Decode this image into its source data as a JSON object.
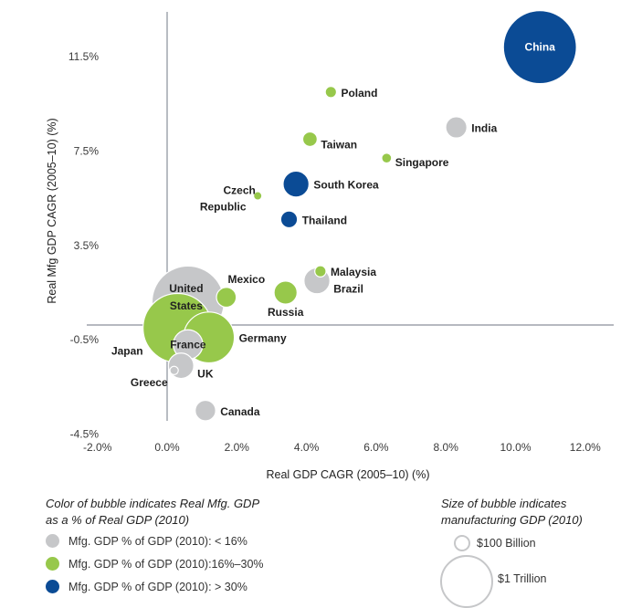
{
  "chart_data": {
    "type": "scatter",
    "subtype": "bubble",
    "xlabel": "Real GDP CAGR (2005–10) (%)",
    "ylabel": "Real Mfg GDP CAGR (2005–10) (%)",
    "xlim": [
      -2.0,
      12.0
    ],
    "ylim": [
      -4.5,
      11.5
    ],
    "x_ticks": [
      "-2.0%",
      "0.0%",
      "2.0%",
      "4.0%",
      "6.0%",
      "8.0%",
      "10.0%",
      "12.0%"
    ],
    "x_tick_values": [
      -2,
      0,
      2,
      4,
      6,
      8,
      10,
      12
    ],
    "y_ticks": [
      "11.5%",
      "7.5%",
      "3.5%",
      "-0.5%",
      "-4.5%"
    ],
    "y_tick_values": [
      11.5,
      7.5,
      3.5,
      -0.5,
      -4.5
    ],
    "grid": false,
    "colors": {
      "low": "#c6c7c9",
      "mid": "#97c84b",
      "high": "#0b4b95"
    },
    "points": [
      {
        "name": "China",
        "x": 10.7,
        "y": 11.9,
        "size_bn": 1900,
        "group": "high",
        "label_pos": "center"
      },
      {
        "name": "India",
        "x": 8.3,
        "y": 8.5,
        "size_bn": 160,
        "group": "low",
        "label_pos": "right"
      },
      {
        "name": "Poland",
        "x": 4.7,
        "y": 10.0,
        "size_bn": 45,
        "group": "mid",
        "label_pos": "right"
      },
      {
        "name": "Taiwan",
        "x": 4.1,
        "y": 8.0,
        "size_bn": 75,
        "group": "mid",
        "label_pos": "right-below"
      },
      {
        "name": "Singapore",
        "x": 6.3,
        "y": 7.2,
        "size_bn": 35,
        "group": "mid",
        "label_pos": "right-below"
      },
      {
        "name": "South Korea",
        "x": 3.7,
        "y": 6.1,
        "size_bn": 240,
        "group": "high",
        "label_pos": "right"
      },
      {
        "name": "Czech Republic",
        "x": 2.6,
        "y": 5.6,
        "size_bn": 25,
        "group": "mid",
        "label_pos": "left"
      },
      {
        "name": "Thailand",
        "x": 3.5,
        "y": 4.6,
        "size_bn": 100,
        "group": "high",
        "label_pos": "right"
      },
      {
        "name": "Brazil",
        "x": 4.3,
        "y": 2.0,
        "size_bn": 240,
        "group": "low",
        "label_pos": "right-below"
      },
      {
        "name": "Malaysia",
        "x": 4.4,
        "y": 2.4,
        "size_bn": 45,
        "group": "mid",
        "label_pos": "right"
      },
      {
        "name": "Mexico",
        "x": 1.7,
        "y": 1.3,
        "size_bn": 140,
        "group": "mid",
        "label_pos": "above"
      },
      {
        "name": "Russia",
        "x": 3.4,
        "y": 1.5,
        "size_bn": 190,
        "group": "mid",
        "label_pos": "below"
      },
      {
        "name": "Japan",
        "x": 0.3,
        "y": 0.0,
        "size_bn": 1700,
        "group": "mid",
        "label_pos": "left-below"
      },
      {
        "name": "United States",
        "x": 0.6,
        "y": 1.1,
        "size_bn": 1850,
        "group": "low",
        "label_pos": "center"
      },
      {
        "name": "Germany",
        "x": 1.2,
        "y": -0.4,
        "size_bn": 920,
        "group": "mid",
        "label_pos": "right"
      },
      {
        "name": "France",
        "x": 0.6,
        "y": -0.7,
        "size_bn": 310,
        "group": "low",
        "label_pos": "center"
      },
      {
        "name": "UK",
        "x": 0.4,
        "y": -1.6,
        "size_bn": 230,
        "group": "low",
        "label_pos": "right-below"
      },
      {
        "name": "Greece",
        "x": 0.2,
        "y": -1.8,
        "size_bn": 25,
        "group": "low",
        "label_pos": "left-below"
      },
      {
        "name": "Canada",
        "x": 1.1,
        "y": -3.5,
        "size_bn": 150,
        "group": "low",
        "label_pos": "right"
      }
    ],
    "legend": {
      "color_title_line1": "Color of bubble indicates Real Mfg. GDP",
      "color_title_line2": "as a % of Real GDP (2010)",
      "color_items": [
        {
          "label": "Mfg. GDP % of GDP (2010): < 16%",
          "group": "low"
        },
        {
          "label": "Mfg. GDP % of GDP (2010):16%–30%",
          "group": "mid"
        },
        {
          "label": "Mfg. GDP % of GDP (2010): > 30%",
          "group": "high"
        }
      ],
      "size_title_line1": "Size of bubble indicates",
      "size_title_line2": "manufacturing GDP (2010)",
      "size_items": [
        {
          "label": "$100 Billion"
        },
        {
          "label": "$1 Trillion"
        }
      ]
    }
  }
}
